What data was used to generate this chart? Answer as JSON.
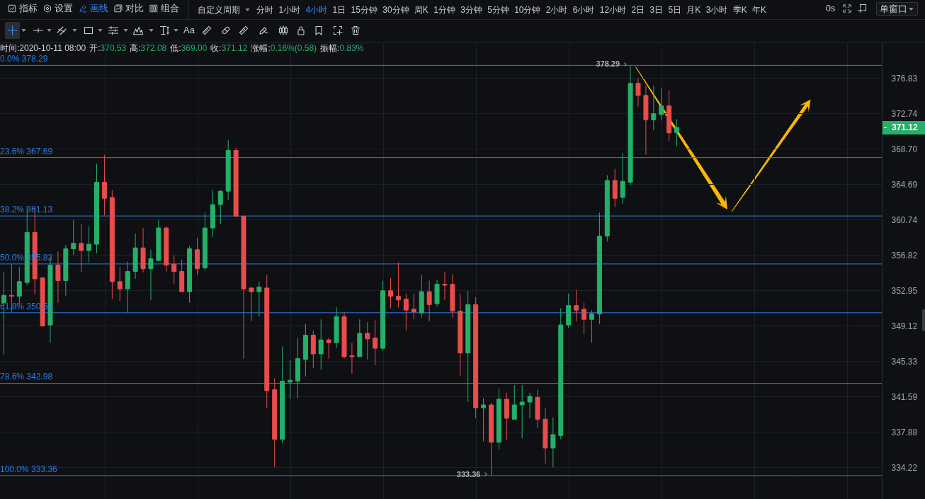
{
  "chart_data": {
    "type": "candlestick",
    "categories": [
      null,
      null,
      null,
      null,
      null,
      null,
      null,
      null,
      null,
      null,
      null,
      null,
      null,
      null,
      null,
      null,
      null,
      null,
      null,
      null,
      null,
      null,
      null,
      null,
      null,
      null,
      null,
      null,
      null,
      null,
      null,
      null,
      null,
      null,
      null,
      null,
      null,
      null,
      null,
      null,
      null,
      null,
      null,
      null,
      null,
      null,
      null,
      null,
      null,
      null,
      null,
      null,
      null,
      null,
      null,
      null,
      null,
      null,
      null,
      null,
      null,
      null,
      null,
      null,
      null,
      null,
      null,
      null,
      null,
      null,
      null,
      null,
      null,
      null,
      null,
      null,
      null,
      null,
      null,
      null,
      null,
      null,
      null,
      null,
      null,
      null,
      null,
      null,
      null,
      null,
      null,
      null,
      null,
      null,
      null,
      null,
      null,
      null,
      null,
      null,
      null,
      null,
      null,
      null,
      null,
      null,
      null,
      null,
      null,
      null,
      null,
      null,
      null,
      null
    ],
    "ohlc": [
      [
        351.6,
        354.9,
        346.0,
        352.4
      ],
      [
        352.4,
        355.8,
        350.6,
        352.3
      ],
      [
        352.3,
        355.5,
        351.4,
        353.9
      ],
      [
        353.8,
        362.1,
        353.5,
        359.3
      ],
      [
        359.3,
        362.1,
        352.5,
        354.2
      ],
      [
        354.3,
        354.4,
        349.0,
        349.1
      ],
      [
        349.2,
        356.5,
        347.3,
        355.7
      ],
      [
        355.7,
        357.2,
        351.6,
        354.0
      ],
      [
        354.0,
        357.9,
        352.3,
        357.5
      ],
      [
        357.5,
        360.7,
        356.8,
        358.1
      ],
      [
        358.1,
        360.2,
        354.9,
        357.3
      ],
      [
        357.3,
        360.0,
        356.0,
        358.0
      ],
      [
        358.0,
        367.0,
        357.0,
        364.9
      ],
      [
        364.9,
        368.0,
        361.2,
        363.1
      ],
      [
        363.2,
        364.0,
        352.0,
        353.9
      ],
      [
        353.9,
        355.5,
        351.8,
        353.1
      ],
      [
        353.1,
        356.1,
        350.5,
        355.0
      ],
      [
        355.0,
        359.2,
        354.2,
        357.6
      ],
      [
        357.6,
        359.8,
        354.9,
        355.3
      ],
      [
        355.3,
        357.4,
        351.9,
        356.4
      ],
      [
        356.2,
        360.7,
        356.2,
        359.8
      ],
      [
        359.8,
        360.0,
        355.0,
        355.7
      ],
      [
        355.8,
        356.8,
        353.6,
        355.0
      ],
      [
        355.0,
        356.3,
        352.8,
        352.8
      ],
      [
        352.8,
        357.8,
        351.6,
        357.5
      ],
      [
        357.4,
        358.7,
        354.6,
        355.3
      ],
      [
        355.4,
        361.5,
        355.1,
        359.8
      ],
      [
        359.8,
        364.0,
        358.8,
        362.4
      ],
      [
        362.4,
        364.0,
        360.2,
        363.9
      ],
      [
        363.9,
        369.7,
        362.9,
        368.5
      ],
      [
        368.5,
        368.8,
        361.0,
        361.1
      ],
      [
        361.1,
        361.2,
        345.6,
        353.1
      ],
      [
        353.2,
        353.3,
        349.6,
        352.8
      ],
      [
        352.8,
        353.9,
        350.1,
        353.3
      ],
      [
        353.2,
        354.6,
        340.4,
        342.2
      ],
      [
        342.3,
        343.5,
        334.2,
        337.1
      ],
      [
        337.1,
        346.9,
        336.7,
        343.2
      ],
      [
        343.1,
        345.4,
        341.3,
        343.3
      ],
      [
        343.2,
        347.8,
        341.4,
        345.6
      ],
      [
        345.5,
        349.3,
        343.7,
        348.1
      ],
      [
        348.1,
        348.6,
        344.6,
        346.1
      ],
      [
        346.1,
        349.8,
        344.4,
        347.6
      ],
      [
        347.6,
        347.8,
        345.6,
        347.3
      ],
      [
        347.3,
        351.1,
        346.7,
        350.1
      ],
      [
        350.1,
        350.6,
        345.6,
        345.8
      ],
      [
        345.9,
        347.3,
        344.0,
        345.8
      ],
      [
        345.8,
        349.8,
        345.8,
        348.3
      ],
      [
        348.3,
        349.5,
        345.5,
        347.7
      ],
      [
        347.8,
        349.7,
        344.9,
        346.7
      ],
      [
        346.7,
        354.0,
        346.4,
        352.9
      ],
      [
        352.9,
        354.3,
        351.0,
        352.3
      ],
      [
        352.3,
        356.0,
        351.1,
        351.9
      ],
      [
        352.0,
        352.6,
        348.6,
        350.8
      ],
      [
        350.9,
        352.6,
        349.8,
        350.6
      ],
      [
        350.5,
        354.6,
        350.0,
        352.8
      ],
      [
        352.8,
        354.0,
        349.6,
        351.4
      ],
      [
        351.5,
        354.1,
        351.2,
        353.6
      ],
      [
        353.6,
        355.0,
        351.9,
        353.5
      ],
      [
        353.6,
        354.7,
        350.0,
        350.7
      ],
      [
        350.7,
        352.6,
        343.8,
        346.2
      ],
      [
        346.2,
        352.9,
        341.0,
        351.4
      ],
      [
        351.4,
        352.2,
        339.3,
        340.4
      ],
      [
        340.4,
        341.4,
        336.9,
        340.7
      ],
      [
        340.7,
        340.9,
        333.36,
        336.8
      ],
      [
        336.8,
        342.4,
        336.1,
        341.3
      ],
      [
        341.3,
        342.0,
        337.0,
        339.3
      ],
      [
        339.2,
        342.8,
        339.2,
        340.7
      ],
      [
        340.7,
        342.8,
        337.2,
        341.0
      ],
      [
        341.0,
        342.0,
        339.3,
        341.6
      ],
      [
        341.5,
        342.3,
        338.3,
        339.2
      ],
      [
        339.2,
        340.4,
        334.6,
        336.2
      ],
      [
        336.2,
        339.4,
        334.2,
        337.6
      ],
      [
        337.5,
        351.0,
        337.1,
        349.2
      ],
      [
        349.2,
        352.6,
        348.9,
        351.3
      ],
      [
        351.3,
        353.0,
        349.6,
        350.8
      ],
      [
        350.9,
        351.6,
        348.2,
        349.8
      ],
      [
        349.8,
        350.8,
        347.3,
        350.4
      ],
      [
        350.4,
        361.5,
        349.3,
        358.9
      ],
      [
        358.9,
        365.7,
        358.3,
        365.1
      ],
      [
        365.1,
        366.4,
        362.1,
        363.1
      ],
      [
        363.2,
        368.2,
        362.5,
        365.0
      ],
      [
        364.9,
        378.29,
        364.6,
        376.2
      ],
      [
        376.2,
        376.8,
        373.5,
        374.8
      ],
      [
        374.8,
        375.9,
        368.0,
        372.0
      ],
      [
        372.0,
        375.9,
        370.8,
        372.7
      ],
      [
        372.6,
        375.6,
        371.9,
        373.6
      ],
      [
        373.6,
        375.4,
        369.6,
        370.5
      ],
      [
        370.53,
        372.08,
        369.0,
        371.12
      ],
      null,
      null,
      null,
      null,
      null,
      null,
      null,
      null,
      null,
      null,
      null,
      null,
      null,
      null,
      null,
      null,
      null,
      null,
      null,
      null,
      null,
      null,
      null,
      null,
      null,
      null
    ],
    "colors": [
      "#25b06a",
      "#e84d4b",
      "#25b06a",
      "#25b06a",
      "#e84d4b",
      "#e84d4b",
      "#25b06a",
      "#e84d4b",
      "#25b06a",
      "#25b06a",
      "#e84d4b",
      "#25b06a",
      "#25b06a",
      "#e84d4b",
      "#e84d4b",
      "#e84d4b",
      "#25b06a",
      "#25b06a",
      "#e84d4b",
      "#25b06a",
      "#25b06a",
      "#e84d4b",
      "#e84d4b",
      "#e84d4b",
      "#25b06a",
      "#e84d4b",
      "#25b06a",
      "#25b06a",
      "#25b06a",
      "#25b06a",
      "#e84d4b",
      "#e84d4b",
      "#e84d4b",
      "#25b06a",
      "#e84d4b",
      "#e84d4b",
      "#25b06a",
      "#25b06a",
      "#25b06a",
      "#25b06a",
      "#e84d4b",
      "#25b06a",
      "#e84d4b",
      "#25b06a",
      "#e84d4b",
      "#e84d4b",
      "#25b06a",
      "#e84d4b",
      "#e84d4b",
      "#25b06a",
      "#e84d4b",
      "#e84d4b",
      "#e84d4b",
      "#e84d4b",
      "#25b06a",
      "#e84d4b",
      "#25b06a",
      "#e84d4b",
      "#e84d4b",
      "#e84d4b",
      "#25b06a",
      "#e84d4b",
      "#25b06a",
      "#e84d4b",
      "#25b06a",
      "#e84d4b",
      "#25b06a",
      "#25b06a",
      "#25b06a",
      "#e84d4b",
      "#e84d4b",
      "#25b06a",
      "#25b06a",
      "#25b06a",
      "#e84d4b",
      "#e84d4b",
      "#25b06a",
      "#25b06a",
      "#25b06a",
      "#e84d4b",
      "#25b06a",
      "#25b06a",
      "#e84d4b",
      "#e84d4b",
      "#25b06a",
      "#25b06a",
      "#e84d4b",
      "#25b06a",
      null,
      null,
      null,
      null,
      null,
      null,
      null,
      null,
      null,
      null,
      null,
      null,
      null,
      null,
      null,
      null,
      null,
      null,
      null,
      null,
      null,
      null,
      null,
      null,
      null,
      null
    ],
    "ylim": [
      330.96,
      380.97
    ],
    "yticks": [
      334.22,
      337.88,
      341.59,
      345.33,
      349.12,
      352.95,
      356.82,
      360.74,
      364.69,
      {
        "value": 368.7,
        "label": "368.70"
      },
      372.74,
      376.83
    ],
    "log": true,
    "grid": true,
    "tick_labels": "y",
    "ref_lines": [
      {
        "axis": "y",
        "value": 378.29,
        "label": "0.0% 378.29",
        "color": "#2a7be6"
      },
      {
        "axis": "y",
        "value": 367.69,
        "label": "23.6% 367.69",
        "color": "#2a7be6"
      },
      {
        "axis": "y",
        "value": 361.13,
        "label": "38.2% 361.13",
        "color": "#2a7be6"
      },
      {
        "axis": "y",
        "value": 355.83,
        "label": "50.0% 355.83",
        "color": "#2a7be6"
      },
      {
        "axis": "y",
        "value": 350.52,
        "label": "61.8% 350.52",
        "color": "#2a7be6"
      },
      {
        "axis": "y",
        "value": 342.98,
        "label": "78.6% 342.98",
        "color": "#2a7be6"
      },
      {
        "axis": "y",
        "value": 333.36,
        "label": "100.0% 333.36",
        "color": "#2a7be6"
      }
    ],
    "annotations": [
      "指标",
      "设置",
      "画线",
      "对比",
      "组合",
      "自定义周期",
      "分时",
      "1小时",
      "4小时",
      "1日",
      "15分钟",
      "30分钟",
      "周K",
      "1分钟",
      "3分钟",
      "5分钟",
      "10分钟",
      "2小时",
      "6小时",
      "12小时",
      "2日",
      "3日",
      "5日",
      "月K",
      "3小时",
      "季K",
      "年K",
      "0s",
      "单窗口",
      "Aa",
      "时间:2020-10-11 08:00",
      "开:370.53",
      "高:372.08",
      "低:369.00",
      "收:371.12",
      "涨幅:0.16%(0.58)",
      "振幅:0.83%",
      {
        "text": "378.29",
        "y": 378.29
      },
      {
        "text": "333.36",
        "y": 333.36
      },
      "371.12"
    ]
  }
}
